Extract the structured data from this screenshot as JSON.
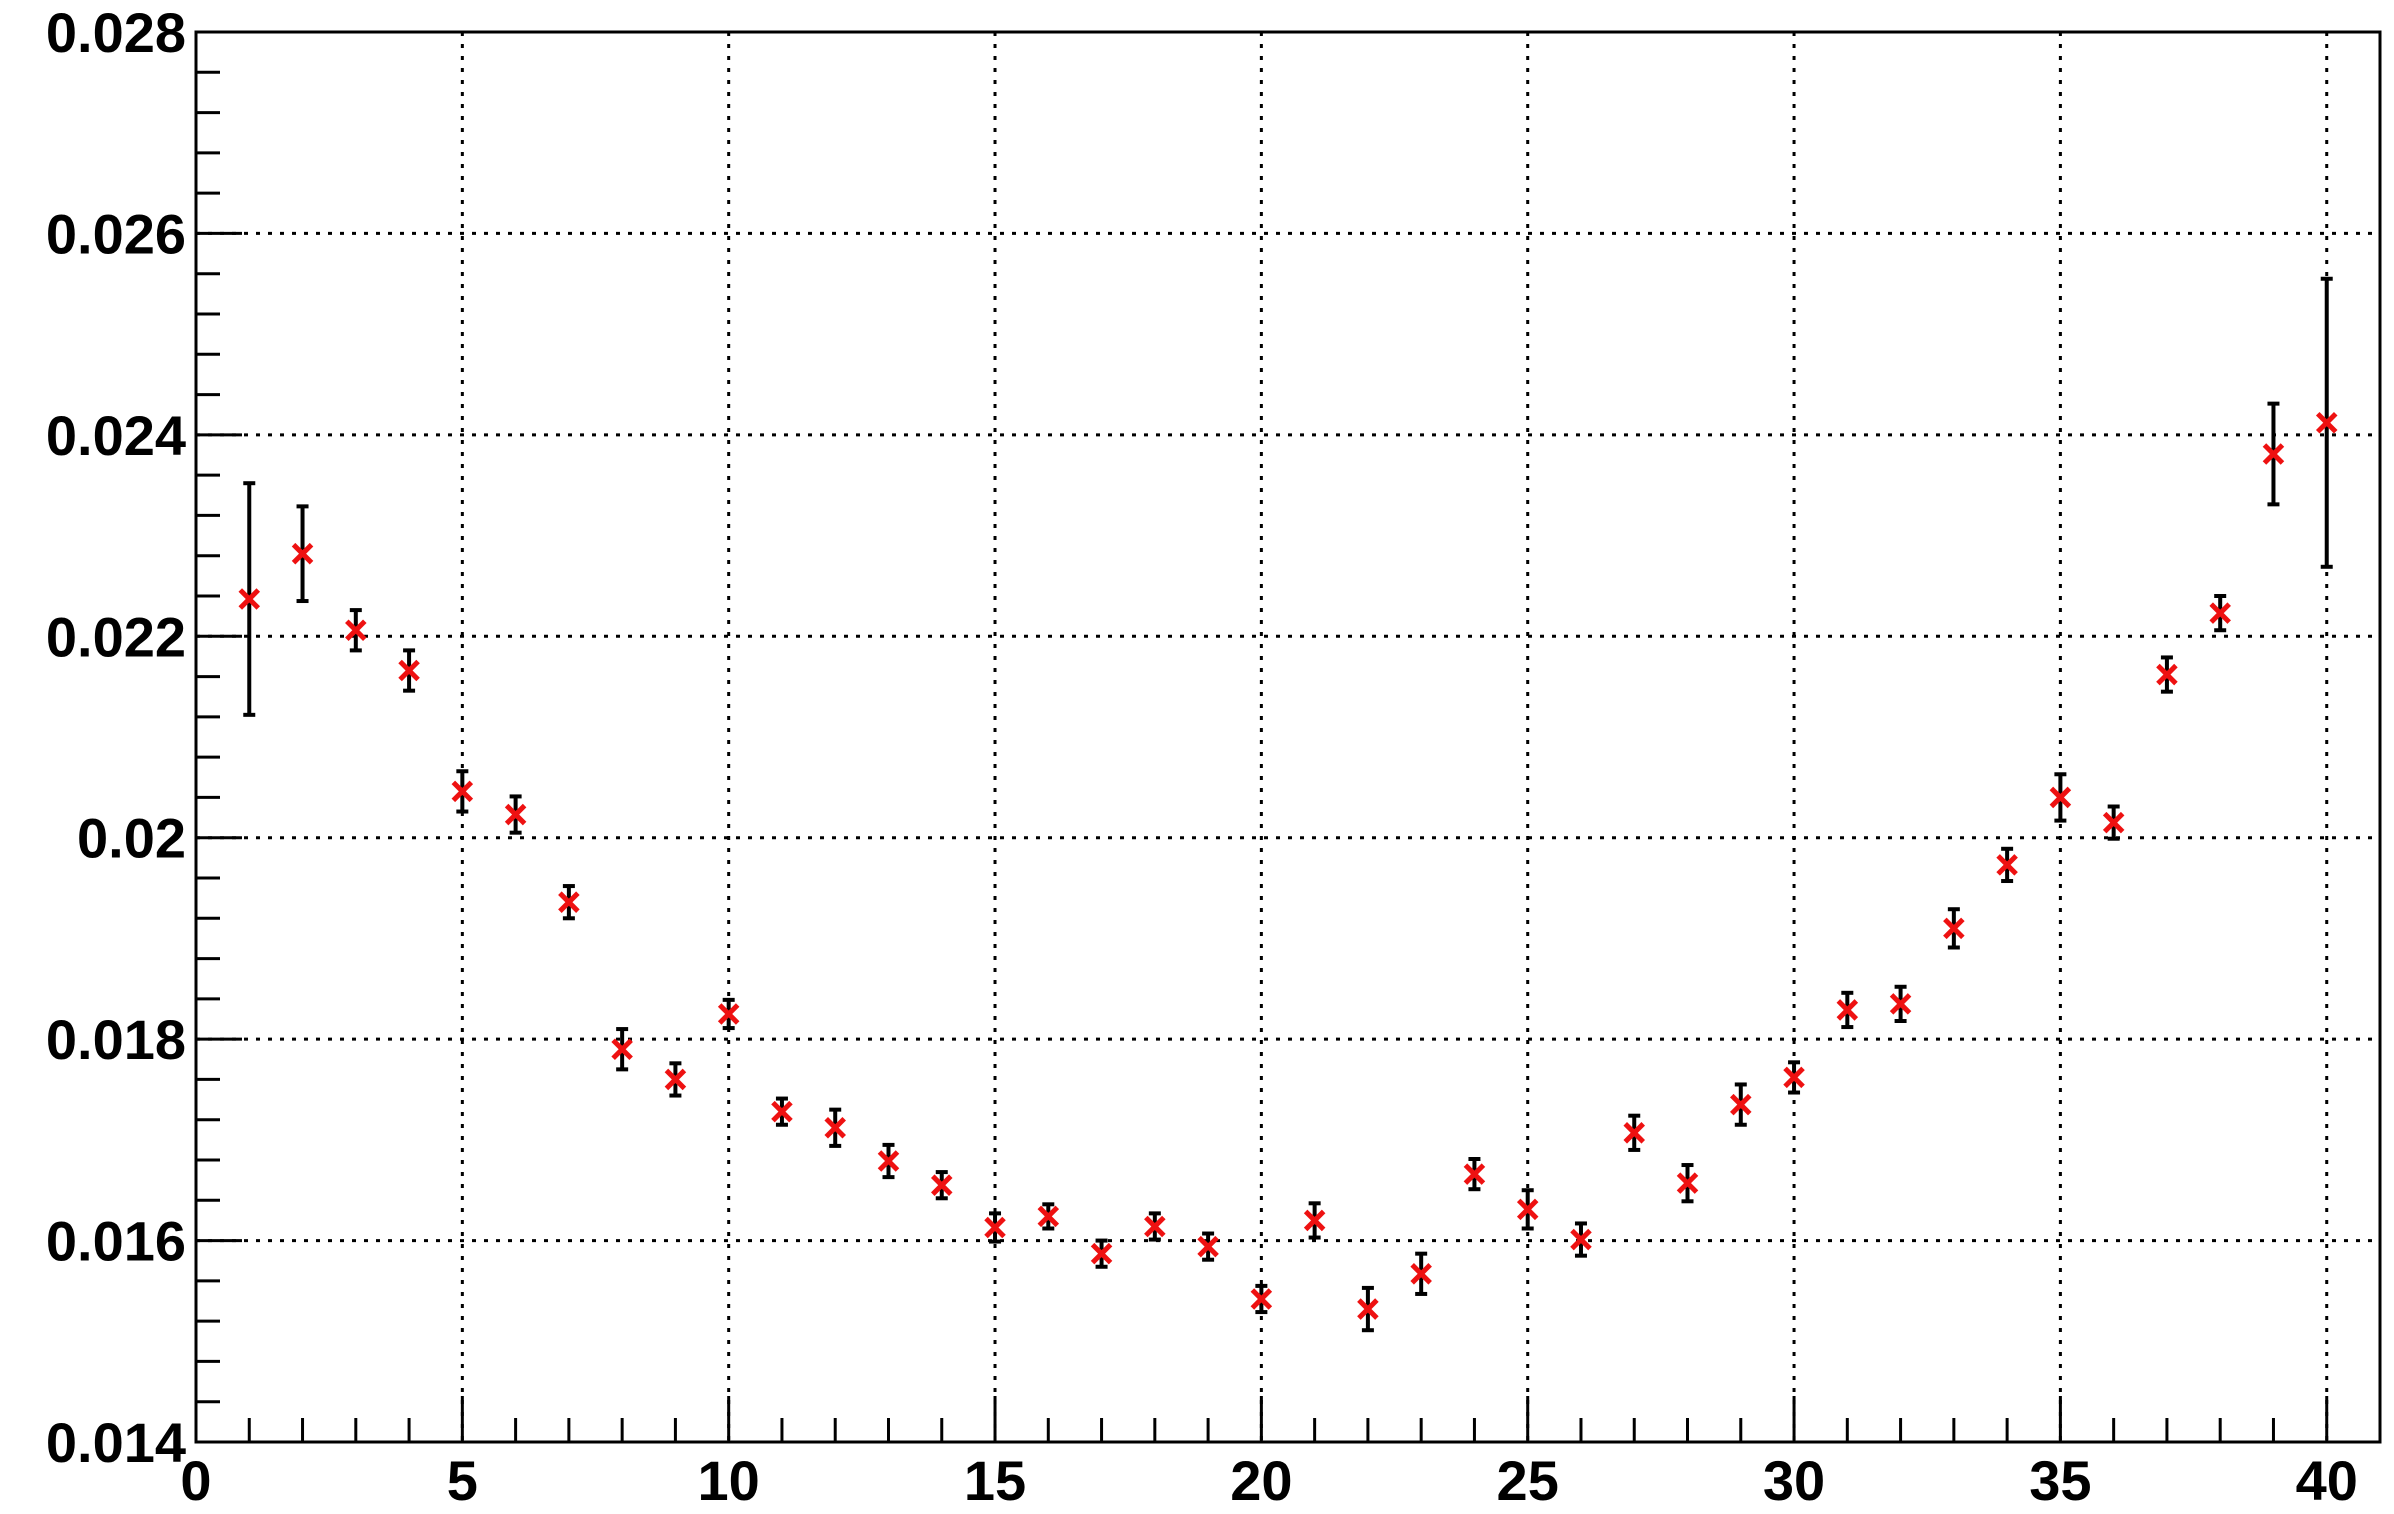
{
  "chart_data": {
    "type": "scatter",
    "title": "",
    "xlabel": "",
    "ylabel": "",
    "xlim": [
      0,
      41
    ],
    "ylim": [
      0.014,
      0.028
    ],
    "grid": true,
    "x_ticks": [
      0,
      5,
      10,
      15,
      20,
      25,
      30,
      35,
      40
    ],
    "x_tick_labels": [
      "0",
      "5",
      "10",
      "15",
      "20",
      "25",
      "30",
      "35",
      "40"
    ],
    "y_ticks": [
      0.014,
      0.016,
      0.018,
      0.02,
      0.022,
      0.024,
      0.026,
      0.028
    ],
    "y_tick_labels": [
      "0.014",
      "0.016",
      "0.018",
      "0.02",
      "0.022",
      "0.024",
      "0.026",
      "0.028"
    ],
    "marker_color": "#ee1111",
    "error_bar_color": "#000000",
    "points": [
      {
        "x": 1,
        "y": 0.02237,
        "err": 0.00115
      },
      {
        "x": 2,
        "y": 0.02282,
        "err": 0.00047
      },
      {
        "x": 3,
        "y": 0.02206,
        "err": 0.0002
      },
      {
        "x": 4,
        "y": 0.02166,
        "err": 0.0002
      },
      {
        "x": 5,
        "y": 0.02046,
        "err": 0.0002
      },
      {
        "x": 6,
        "y": 0.02023,
        "err": 0.00018
      },
      {
        "x": 7,
        "y": 0.01936,
        "err": 0.00016
      },
      {
        "x": 8,
        "y": 0.0179,
        "err": 0.0002
      },
      {
        "x": 9,
        "y": 0.0176,
        "err": 0.00016
      },
      {
        "x": 10,
        "y": 0.01825,
        "err": 0.00014
      },
      {
        "x": 11,
        "y": 0.01728,
        "err": 0.00013
      },
      {
        "x": 12,
        "y": 0.01712,
        "err": 0.00018
      },
      {
        "x": 13,
        "y": 0.01679,
        "err": 0.00016
      },
      {
        "x": 14,
        "y": 0.01655,
        "err": 0.00013
      },
      {
        "x": 15,
        "y": 0.01613,
        "err": 0.00014
      },
      {
        "x": 16,
        "y": 0.01624,
        "err": 0.00012
      },
      {
        "x": 17,
        "y": 0.01587,
        "err": 0.00013
      },
      {
        "x": 18,
        "y": 0.01614,
        "err": 0.00013
      },
      {
        "x": 19,
        "y": 0.01594,
        "err": 0.00013
      },
      {
        "x": 20,
        "y": 0.01542,
        "err": 0.00013
      },
      {
        "x": 21,
        "y": 0.0162,
        "err": 0.00017
      },
      {
        "x": 22,
        "y": 0.01532,
        "err": 0.00021
      },
      {
        "x": 23,
        "y": 0.01567,
        "err": 0.0002
      },
      {
        "x": 24,
        "y": 0.01666,
        "err": 0.00015
      },
      {
        "x": 25,
        "y": 0.01631,
        "err": 0.00019
      },
      {
        "x": 26,
        "y": 0.01601,
        "err": 0.00016
      },
      {
        "x": 27,
        "y": 0.01707,
        "err": 0.00017
      },
      {
        "x": 28,
        "y": 0.01657,
        "err": 0.00018
      },
      {
        "x": 29,
        "y": 0.01735,
        "err": 0.0002
      },
      {
        "x": 30,
        "y": 0.01762,
        "err": 0.00015
      },
      {
        "x": 31,
        "y": 0.01829,
        "err": 0.00017
      },
      {
        "x": 32,
        "y": 0.01835,
        "err": 0.00017
      },
      {
        "x": 33,
        "y": 0.0191,
        "err": 0.00019
      },
      {
        "x": 34,
        "y": 0.01973,
        "err": 0.00016
      },
      {
        "x": 35,
        "y": 0.0204,
        "err": 0.00023
      },
      {
        "x": 36,
        "y": 0.02015,
        "err": 0.00016
      },
      {
        "x": 37,
        "y": 0.02162,
        "err": 0.00017
      },
      {
        "x": 38,
        "y": 0.02223,
        "err": 0.00017
      },
      {
        "x": 39,
        "y": 0.02381,
        "err": 0.0005
      },
      {
        "x": 40,
        "y": 0.02412,
        "err": 0.00143
      }
    ]
  }
}
